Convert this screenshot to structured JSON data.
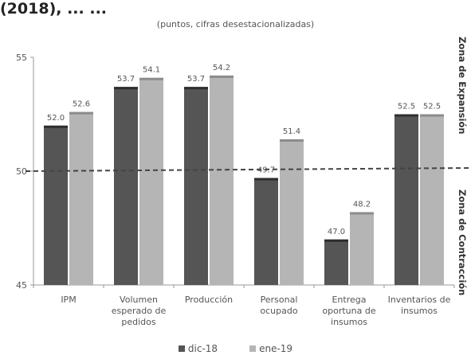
{
  "header": {
    "title_fragment": "(2018), ... ...",
    "subtitle": "(puntos, cifras desestacionalizadas)"
  },
  "zones": {
    "expansion": "Zona de Expansión",
    "contraction": "Zona de Contracción"
  },
  "chart_data": {
    "type": "bar",
    "title": "",
    "xlabel": "",
    "ylabel": "",
    "ylim": [
      45,
      55
    ],
    "yticks": [
      45,
      50,
      55
    ],
    "threshold": 50,
    "grid": false,
    "legend_position": "bottom",
    "categories": [
      "IPM",
      "Volumen esperado de pedidos",
      "Producción",
      "Personal ocupado",
      "Entrega oportuna de insumos",
      "Inventarios de insumos"
    ],
    "category_lines": [
      [
        "IPM"
      ],
      [
        "Volumen",
        "esperado de",
        "pedidos"
      ],
      [
        "Producción"
      ],
      [
        "Personal",
        "ocupado"
      ],
      [
        "Entrega",
        "oportuna de",
        "insumos"
      ],
      [
        "Inventarios de",
        "insumos"
      ]
    ],
    "series": [
      {
        "name": "dic-18",
        "color": "#555555",
        "values": [
          52.0,
          53.7,
          53.7,
          49.7,
          47.0,
          52.5
        ]
      },
      {
        "name": "ene-19",
        "color": "#b5b5b5",
        "values": [
          52.6,
          54.1,
          54.2,
          51.4,
          48.2,
          52.5
        ]
      }
    ]
  }
}
